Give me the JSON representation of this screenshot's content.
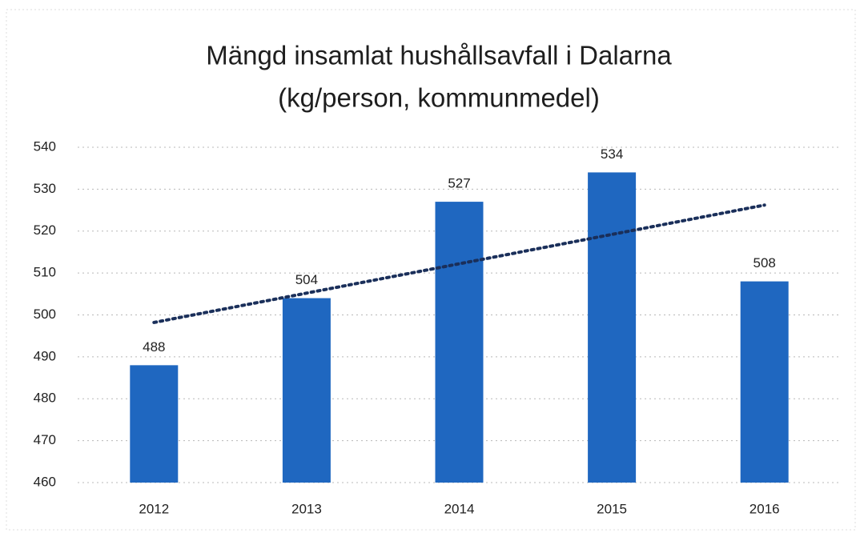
{
  "chart_data": {
    "type": "bar",
    "title": [
      "Mängd insamlat hushållsavfall i Dalarna",
      "(kg/person, kommunmedel)"
    ],
    "categories": [
      "2012",
      "2013",
      "2014",
      "2015",
      "2016"
    ],
    "values": [
      488,
      504,
      527,
      534,
      508
    ],
    "color": "#1f67c0",
    "ylim": [
      460,
      540
    ],
    "yticks": [
      460,
      470,
      480,
      490,
      500,
      510,
      520,
      530,
      540
    ],
    "grid": true,
    "trendline": true,
    "trendline_color": "#1a2f5a"
  }
}
